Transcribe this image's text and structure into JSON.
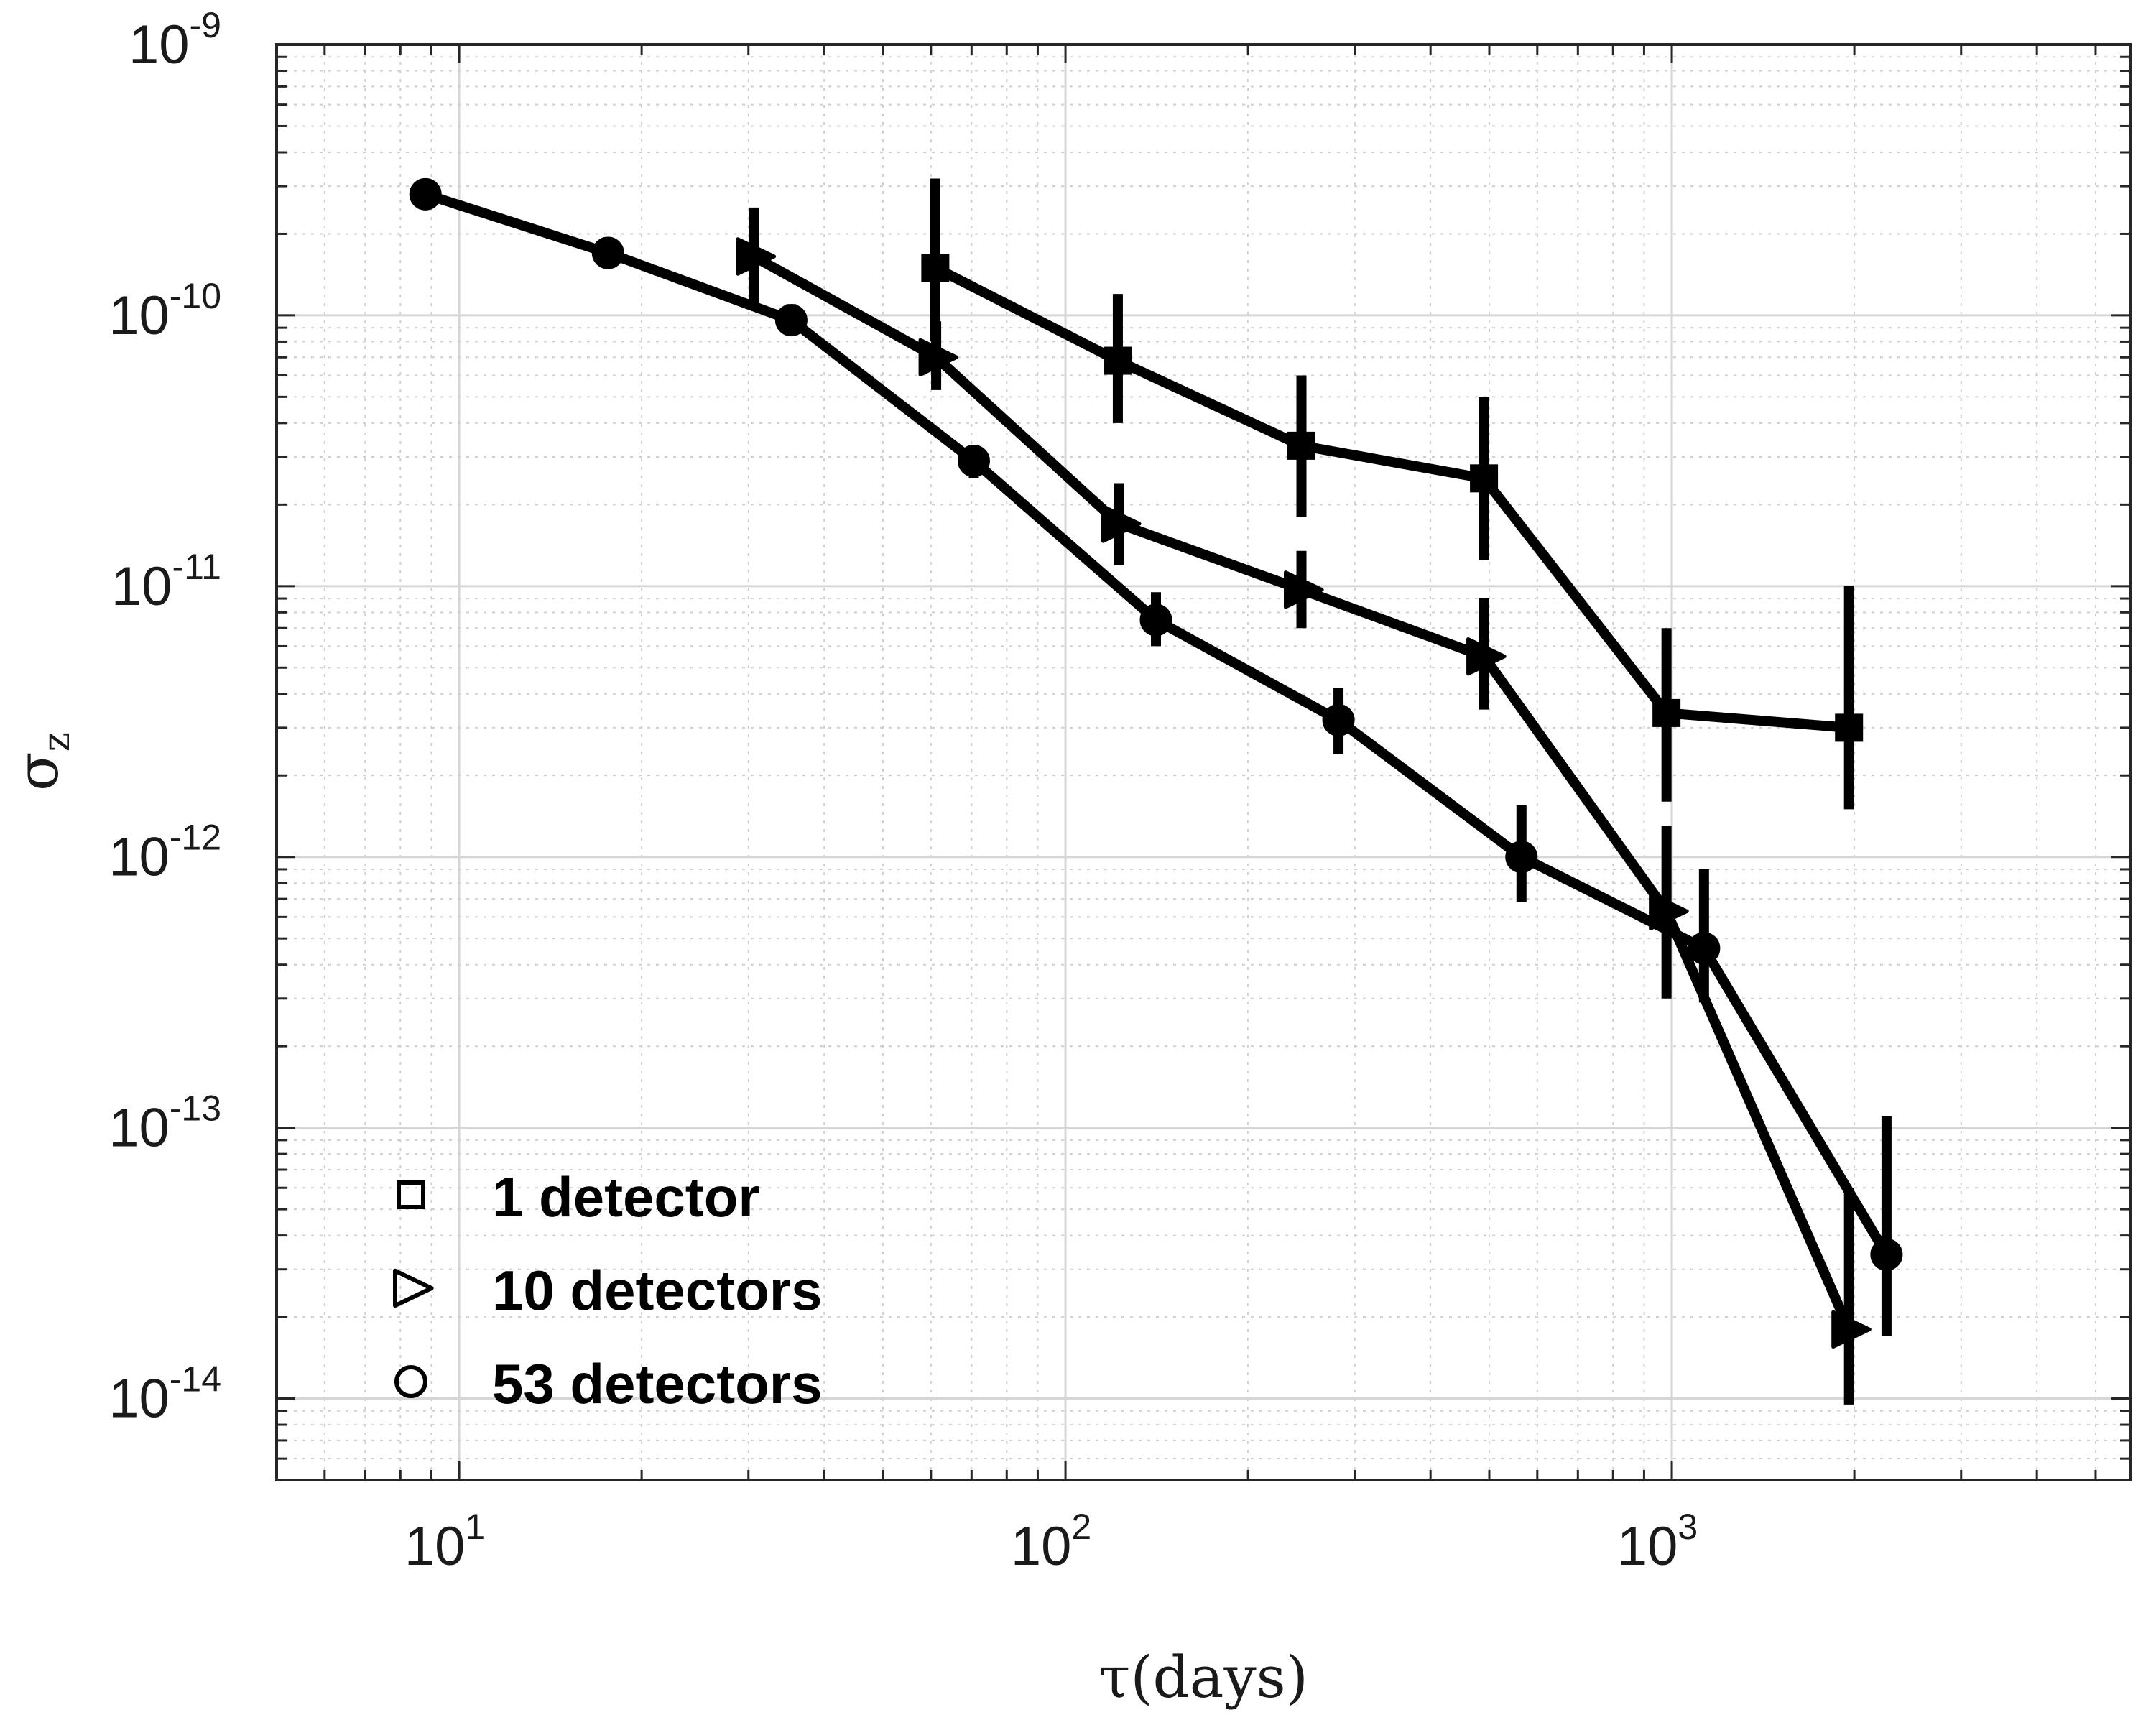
{
  "chart_data": {
    "type": "line",
    "xlabel": "τ(days)",
    "ylabel_symbol": "σ",
    "ylabel_subscript": "z",
    "xscale": "log",
    "yscale": "log",
    "xlim": [
      5,
      5700
    ],
    "ylim": [
      5e-15,
      1e-09
    ],
    "grid": true,
    "minor_grid": true,
    "x_ticks": [
      {
        "base": "10",
        "exp": "1",
        "value": 10
      },
      {
        "base": "10",
        "exp": "2",
        "value": 100
      },
      {
        "base": "10",
        "exp": "3",
        "value": 1000
      }
    ],
    "y_ticks": [
      {
        "base": "10",
        "exp": "-9",
        "value": 1e-09
      },
      {
        "base": "10",
        "exp": "-10",
        "value": 1e-10
      },
      {
        "base": "10",
        "exp": "-11",
        "value": 1e-11
      },
      {
        "base": "10",
        "exp": "-12",
        "value": 1e-12
      },
      {
        "base": "10",
        "exp": "-13",
        "value": 1e-13
      },
      {
        "base": "10",
        "exp": "-14",
        "value": 1e-14
      }
    ],
    "legend_position": "bottom-left",
    "series": [
      {
        "name": "1 detector",
        "marker": "square",
        "color": "#000000",
        "points": [
          {
            "x": 61,
            "y": 1.5e-10,
            "ylo": 8e-11,
            "yhi": 3.2e-10
          },
          {
            "x": 122,
            "y": 6.8e-11,
            "ylo": 4e-11,
            "yhi": 1.2e-10
          },
          {
            "x": 245,
            "y": 3.3e-11,
            "ylo": 1.8e-11,
            "yhi": 6e-11
          },
          {
            "x": 490,
            "y": 2.5e-11,
            "ylo": 1.25e-11,
            "yhi": 5e-11
          },
          {
            "x": 980,
            "y": 3.4e-12,
            "ylo": 1.6e-12,
            "yhi": 7e-12
          },
          {
            "x": 1960,
            "y": 3e-12,
            "ylo": 1.5e-12,
            "yhi": 1e-11
          }
        ]
      },
      {
        "name": "10 detectors",
        "marker": "triangle-right",
        "color": "#000000",
        "points": [
          {
            "x": 30.6,
            "y": 1.65e-10,
            "ylo": 1.1e-10,
            "yhi": 2.5e-10
          },
          {
            "x": 61.2,
            "y": 7e-11,
            "ylo": 5.3e-11,
            "yhi": 9.5e-11
          },
          {
            "x": 122.5,
            "y": 1.7e-11,
            "ylo": 1.2e-11,
            "yhi": 2.4e-11
          },
          {
            "x": 245,
            "y": 9.7e-12,
            "ylo": 7e-12,
            "yhi": 1.35e-11
          },
          {
            "x": 490,
            "y": 5.5e-12,
            "ylo": 3.5e-12,
            "yhi": 9e-12
          },
          {
            "x": 980,
            "y": 6.3e-13,
            "ylo": 3e-13,
            "yhi": 1.3e-12
          },
          {
            "x": 1960,
            "y": 1.8e-14,
            "ylo": 9.5e-15,
            "yhi": 6e-14
          }
        ]
      },
      {
        "name": "53 detectors",
        "marker": "circle",
        "color": "#000000",
        "points": [
          {
            "x": 8.8,
            "y": 2.8e-10,
            "ylo": 2.6e-10,
            "yhi": 3e-10
          },
          {
            "x": 17.6,
            "y": 1.7e-10,
            "ylo": 1.6e-10,
            "yhi": 1.8e-10
          },
          {
            "x": 35.3,
            "y": 9.6e-11,
            "ylo": 8.4e-11,
            "yhi": 1.1e-10
          },
          {
            "x": 70.6,
            "y": 2.9e-11,
            "ylo": 2.5e-11,
            "yhi": 3.3e-11
          },
          {
            "x": 141,
            "y": 7.5e-12,
            "ylo": 6e-12,
            "yhi": 9.5e-12
          },
          {
            "x": 282,
            "y": 3.2e-12,
            "ylo": 2.4e-12,
            "yhi": 4.2e-12
          },
          {
            "x": 565,
            "y": 1e-12,
            "ylo": 6.8e-13,
            "yhi": 1.55e-12
          },
          {
            "x": 1130,
            "y": 4.6e-13,
            "ylo": 2.9e-13,
            "yhi": 9e-13
          },
          {
            "x": 2260,
            "y": 3.4e-14,
            "ylo": 1.7e-14,
            "yhi": 1.1e-13
          }
        ]
      }
    ]
  }
}
